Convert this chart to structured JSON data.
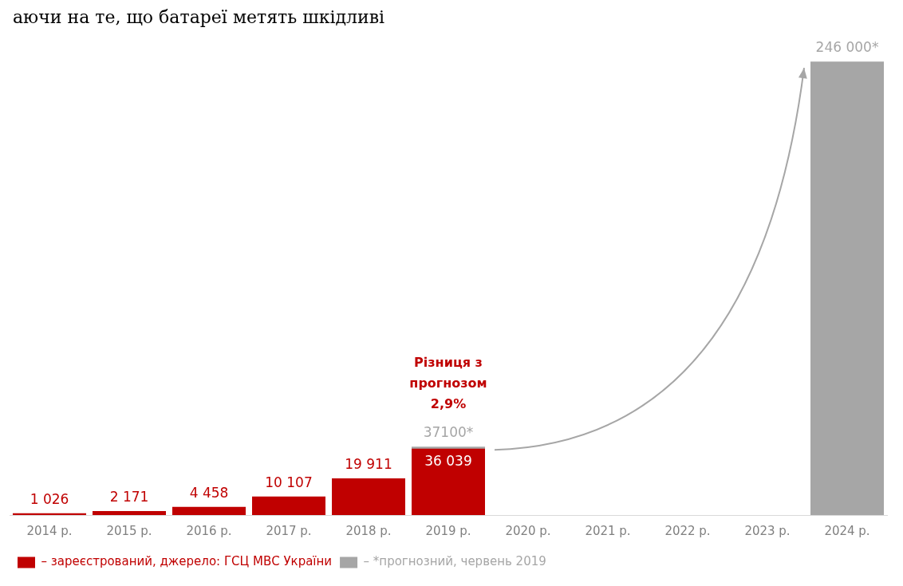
{
  "chart_data": {
    "type": "bar",
    "categories": [
      "2014 р.",
      "2015 р.",
      "2016 р.",
      "2017 р.",
      "2018 р.",
      "2019 р.",
      "2020 р.",
      "2021 р.",
      "2022 р.",
      "2023 р.",
      "2024 р."
    ],
    "series": [
      {
        "name": "– *прогнозний, червень 2019",
        "color": "#a6a6a6",
        "values": [
          null,
          null,
          null,
          null,
          null,
          37100,
          null,
          null,
          null,
          null,
          246000
        ],
        "value_labels": [
          null,
          null,
          null,
          null,
          null,
          "37100*",
          null,
          null,
          null,
          null,
          "246 000*"
        ]
      },
      {
        "name": "– зареєстрований, джерело: ГСЦ МВС України",
        "color": "#c00000",
        "values": [
          1026,
          2171,
          4458,
          10107,
          19911,
          36039,
          null,
          null,
          null,
          null,
          null
        ],
        "value_labels": [
          "1 026",
          "2 171",
          "4 458",
          "10 107",
          "19 911",
          "36 039",
          null,
          null,
          null,
          null,
          null
        ]
      }
    ],
    "tick_labels": "x",
    "grid": false,
    "legend": "bottom left",
    "annotations": [
      "аючи на те, що батареї метять шкідливі",
      {
        "text": "Різниця з прогнозом 2,9%",
        "x": "2019 р.",
        "y": 37100
      }
    ]
  }
}
